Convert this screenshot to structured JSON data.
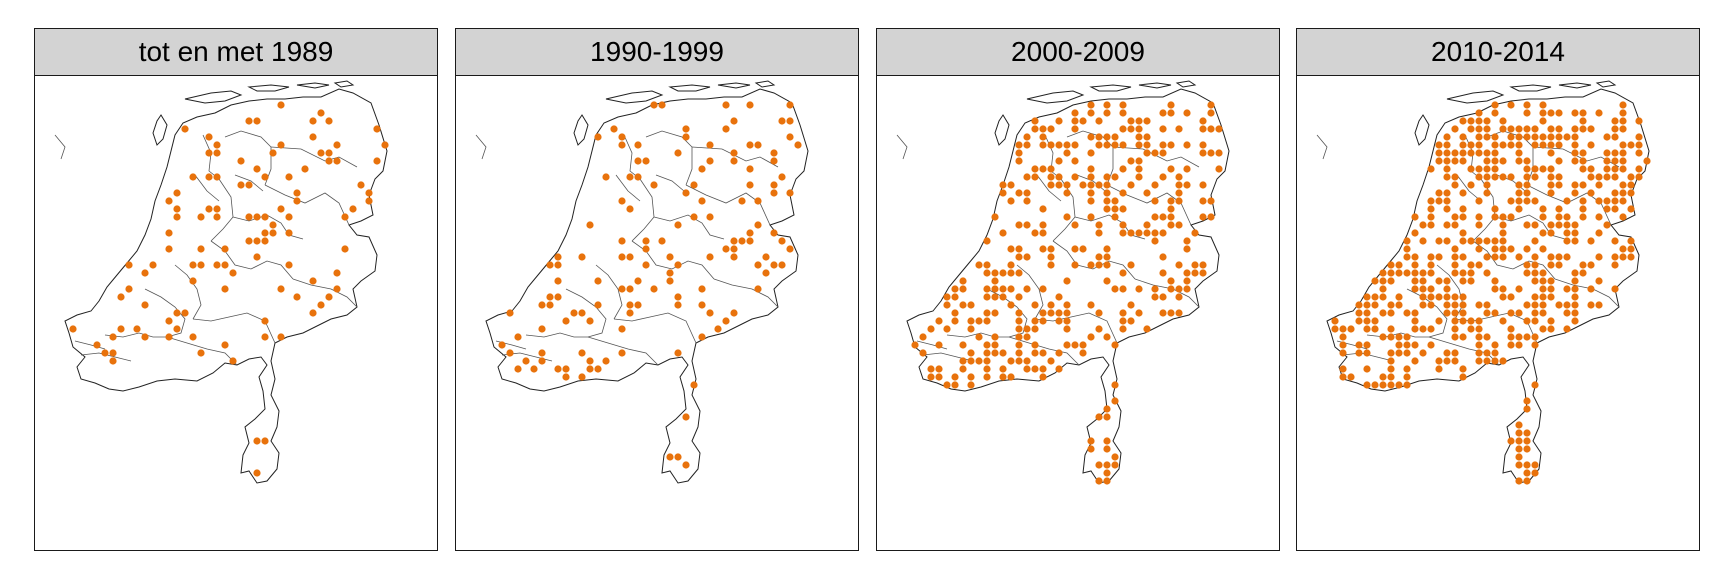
{
  "panels": [
    {
      "title": "tot en met 1989",
      "density": 0.1,
      "seed": 11
    },
    {
      "title": "1990-1999",
      "density": 0.13,
      "seed": 23
    },
    {
      "title": "2000-2009",
      "density": 0.36,
      "seed": 37
    },
    {
      "title": "2010-2014",
      "density": 0.5,
      "seed": 53
    }
  ],
  "colors": {
    "dot": "#e8720c",
    "outline": "#222222",
    "province_line": "#555555"
  },
  "legend": null
}
